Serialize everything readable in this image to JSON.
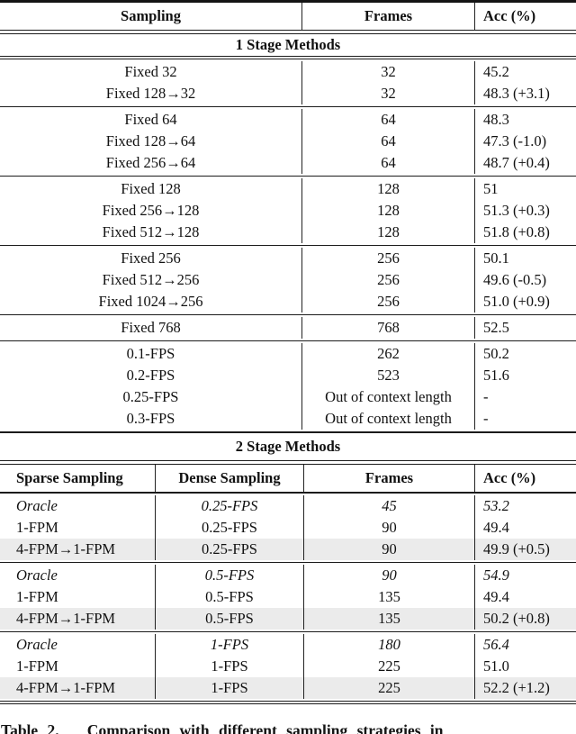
{
  "caption": "Table 2.   Comparison with different sampling strategies in",
  "table": {
    "stage1": {
      "title": "1 Stage Methods",
      "headers": {
        "sampling": "Sampling",
        "frames": "Frames",
        "acc": "Acc (%)"
      },
      "groups": [
        {
          "rows": [
            {
              "sampling": "Fixed 32",
              "frames": "32",
              "acc": "45.2"
            },
            {
              "sampling": "Fixed 128→32",
              "frames": "32",
              "acc": "48.3 (+3.1)"
            }
          ]
        },
        {
          "rows": [
            {
              "sampling": "Fixed 64",
              "frames": "64",
              "acc": "48.3"
            },
            {
              "sampling": "Fixed 128→64",
              "frames": "64",
              "acc": "47.3 (-1.0)"
            },
            {
              "sampling": "Fixed 256→64",
              "frames": "64",
              "acc": "48.7 (+0.4)"
            }
          ]
        },
        {
          "rows": [
            {
              "sampling": "Fixed 128",
              "frames": "128",
              "acc": "51"
            },
            {
              "sampling": "Fixed 256→128",
              "frames": "128",
              "acc": "51.3 (+0.3)"
            },
            {
              "sampling": "Fixed 512→128",
              "frames": "128",
              "acc": "51.8 (+0.8)"
            }
          ]
        },
        {
          "rows": [
            {
              "sampling": "Fixed 256",
              "frames": "256",
              "acc": "50.1"
            },
            {
              "sampling": "Fixed 512→256",
              "frames": "256",
              "acc": "49.6 (-0.5)"
            },
            {
              "sampling": "Fixed 1024→256",
              "frames": "256",
              "acc": "51.0 (+0.9)"
            }
          ]
        },
        {
          "rows": [
            {
              "sampling": "Fixed 768",
              "frames": "768",
              "acc": "52.5"
            }
          ]
        },
        {
          "rows": [
            {
              "sampling": "0.1-FPS",
              "frames": "262",
              "acc": "50.2"
            },
            {
              "sampling": "0.2-FPS",
              "frames": "523",
              "acc": "51.6"
            },
            {
              "sampling": "0.25-FPS",
              "frames": "Out of context length",
              "acc": "-"
            },
            {
              "sampling": "0.3-FPS",
              "frames": "Out of context length",
              "acc": "-"
            }
          ]
        }
      ]
    },
    "stage2": {
      "title": "2 Stage Methods",
      "headers": {
        "sparse": "Sparse Sampling",
        "dense": "Dense Sampling",
        "frames": "Frames",
        "acc": "Acc (%)"
      },
      "groups": [
        {
          "rows": [
            {
              "sparse": "Oracle",
              "dense": "0.25-FPS",
              "frames": "45",
              "acc": "53.2"
            },
            {
              "sparse": "1-FPM",
              "dense": "0.25-FPS",
              "frames": "90",
              "acc": "49.4"
            },
            {
              "sparse": "4-FPM→1-FPM",
              "dense": "0.25-FPS",
              "frames": "90",
              "acc": "49.9 (+0.5)"
            }
          ]
        },
        {
          "rows": [
            {
              "sparse": "Oracle",
              "dense": "0.5-FPS",
              "frames": "90",
              "acc": "54.9"
            },
            {
              "sparse": "1-FPM",
              "dense": "0.5-FPS",
              "frames": "135",
              "acc": "49.4"
            },
            {
              "sparse": "4-FPM→1-FPM",
              "dense": "0.5-FPS",
              "frames": "135",
              "acc": "50.2 (+0.8)"
            }
          ]
        },
        {
          "rows": [
            {
              "sparse": "Oracle",
              "dense": "1-FPS",
              "frames": "180",
              "acc": "56.4"
            },
            {
              "sparse": "1-FPM",
              "dense": "1-FPS",
              "frames": "225",
              "acc": "51.0"
            },
            {
              "sparse": "4-FPM→1-FPM",
              "dense": "1-FPS",
              "frames": "225",
              "acc": "52.2 (+1.2)"
            }
          ]
        }
      ]
    }
  }
}
